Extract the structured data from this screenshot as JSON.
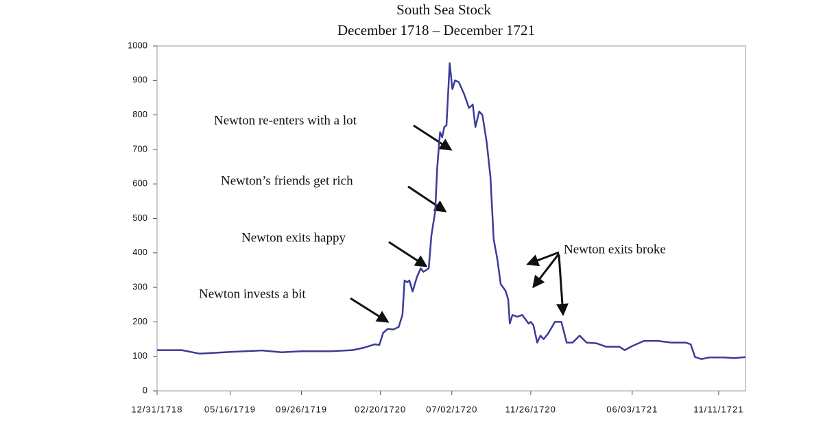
{
  "chart_data": {
    "type": "line",
    "title": "South Sea Stock",
    "subtitle": "December 1718 – December 1721",
    "color": "#3b3b98",
    "x": [
      "12/31/1718",
      "02/15/1719",
      "03/20/1719",
      "05/16/1719",
      "07/15/1719",
      "08/20/1719",
      "09/26/1719",
      "11/20/1719",
      "12/30/1719",
      "01/20/1720",
      "02/10/1720",
      "02/18/1720",
      "02/25/1720",
      "03/05/1720",
      "03/15/1720",
      "03/25/1720",
      "04/01/1720",
      "04/05/1720",
      "04/10/1720",
      "04/14/1720",
      "04/20/1720",
      "04/28/1720",
      "05/05/1720",
      "05/10/1720",
      "05/20/1720",
      "05/25/1720",
      "06/01/1720",
      "06/05/1720",
      "06/10/1720",
      "06/14/1720",
      "06/18/1720",
      "06/22/1720",
      "06/28/1720",
      "07/03/1720",
      "07/08/1720",
      "07/15/1720",
      "07/25/1720",
      "08/03/1720",
      "08/10/1720",
      "08/15/1720",
      "08/22/1720",
      "08/28/1720",
      "09/05/1720",
      "09/12/1720",
      "09/18/1720",
      "09/25/1720",
      "10/01/1720",
      "10/10/1720",
      "10/15/1720",
      "10/18/1720",
      "10/23/1720",
      "11/01/1720",
      "11/10/1720",
      "11/15/1720",
      "11/22/1720",
      "11/26/1720",
      "12/01/1720",
      "12/08/1720",
      "12/14/1720",
      "12/20/1720",
      "12/28/1720",
      "01/10/1721",
      "01/22/1721",
      "02/01/1721",
      "02/12/1721",
      "02/25/1721",
      "03/10/1721",
      "03/28/1721",
      "04/15/1721",
      "05/10/1721",
      "05/20/1721",
      "06/03/1721",
      "06/25/1721",
      "07/20/1721",
      "08/15/1721",
      "09/10/1721",
      "09/20/1721",
      "09/28/1721",
      "10/10/1721",
      "10/25/1721",
      "11/20/1721",
      "12/10/1721",
      "12/31/1721"
    ],
    "values": [
      118,
      118,
      108,
      113,
      117,
      112,
      115,
      115,
      118,
      125,
      135,
      133,
      168,
      180,
      178,
      185,
      220,
      320,
      315,
      320,
      288,
      330,
      355,
      345,
      355,
      450,
      520,
      650,
      750,
      735,
      765,
      770,
      950,
      875,
      900,
      895,
      860,
      820,
      830,
      765,
      810,
      800,
      720,
      620,
      440,
      380,
      310,
      290,
      265,
      195,
      220,
      215,
      220,
      210,
      195,
      200,
      190,
      140,
      160,
      150,
      165,
      200,
      200,
      140,
      140,
      160,
      140,
      138,
      128,
      128,
      118,
      130,
      145,
      145,
      140,
      140,
      135,
      98,
      92,
      97,
      97,
      95,
      98
    ],
    "xlim": [
      "12/31/1718",
      "12/31/1721"
    ],
    "xticks": [
      "12/31/1718",
      "05/16/1719",
      "09/26/1719",
      "02/20/1720",
      "07/02/1720",
      "11/26/1720",
      "06/03/1721",
      "11/11/1721"
    ],
    "ylim": [
      0,
      1000
    ],
    "yticks": [
      0,
      100,
      200,
      300,
      400,
      500,
      600,
      700,
      800,
      900,
      1000
    ],
    "grid": false,
    "annotations": [
      "Newton re-enters with a lot",
      "Newton’s friends get rich",
      "Newton exits happy",
      "Newton invests a bit",
      "Newton exits broke"
    ]
  }
}
